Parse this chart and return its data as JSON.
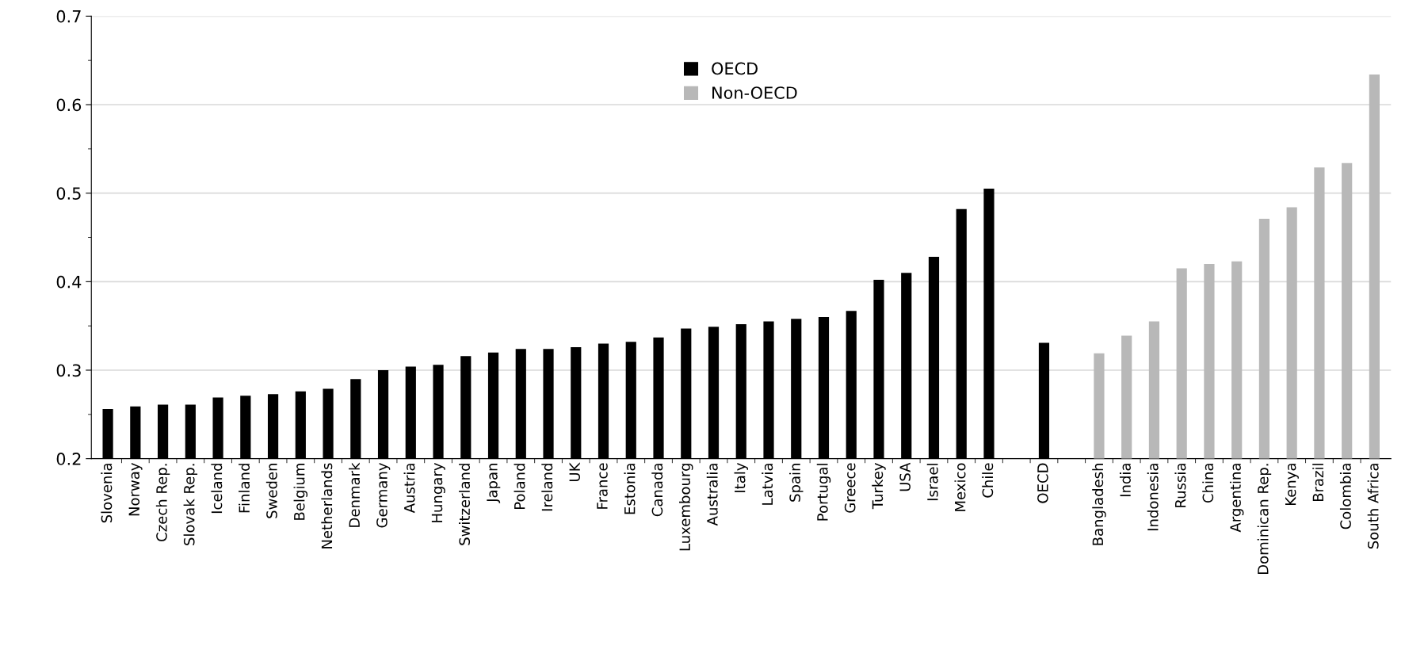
{
  "chart_data": {
    "type": "bar",
    "categories": [
      "Slovenia",
      "Norway",
      "Czech Rep.",
      "Slovak Rep.",
      "Iceland",
      "Finland",
      "Sweden",
      "Belgium",
      "Netherlands",
      "Denmark",
      "Germany",
      "Austria",
      "Hungary",
      "Switzerland",
      "Japan",
      "Poland",
      "Ireland",
      "UK",
      "France",
      "Estonia",
      "Canada",
      "Luxembourg",
      "Australia",
      "Italy",
      "Latvia",
      "Spain",
      "Portugal",
      "Greece",
      "Turkey",
      "USA",
      "Israel",
      "Mexico",
      "Chile",
      null,
      "OECD",
      null,
      "Bangladesh",
      "India",
      "Indonesia",
      "Russia",
      "China",
      "Argentina",
      "Dominican Rep.",
      "Kenya",
      "Brazil",
      "Colombia",
      "South Africa"
    ],
    "series": [
      {
        "name": "OECD",
        "color": "#000000",
        "values": [
          0.256,
          0.259,
          0.261,
          0.261,
          0.269,
          0.271,
          0.273,
          0.276,
          0.279,
          0.29,
          0.3,
          0.304,
          0.306,
          0.316,
          0.32,
          0.324,
          0.324,
          0.326,
          0.33,
          0.332,
          0.337,
          0.347,
          0.349,
          0.352,
          0.355,
          0.358,
          0.36,
          0.367,
          0.402,
          0.41,
          0.428,
          0.482,
          0.505,
          null,
          0.331,
          null,
          null,
          null,
          null,
          null,
          null,
          null,
          null,
          null,
          null,
          null,
          null
        ]
      },
      {
        "name": "Non-OECD",
        "color": "#b8b8b8",
        "values": [
          null,
          null,
          null,
          null,
          null,
          null,
          null,
          null,
          null,
          null,
          null,
          null,
          null,
          null,
          null,
          null,
          null,
          null,
          null,
          null,
          null,
          null,
          null,
          null,
          null,
          null,
          null,
          null,
          null,
          null,
          null,
          null,
          null,
          null,
          null,
          null,
          0.319,
          0.339,
          0.355,
          0.415,
          0.42,
          0.423,
          0.471,
          0.484,
          0.529,
          0.534,
          0.634
        ]
      }
    ],
    "ylim": [
      0.2,
      0.7
    ],
    "yticks": [
      0.2,
      {
        "value": 0.25,
        "label": null
      },
      0.3,
      {
        "value": 0.35,
        "label": null
      },
      0.4,
      {
        "value": 0.45,
        "label": null
      },
      0.5,
      {
        "value": 0.55,
        "label": null
      },
      0.6,
      {
        "value": 0.65,
        "label": null
      },
      0.7
    ],
    "grid": "y",
    "legend": "top"
  }
}
